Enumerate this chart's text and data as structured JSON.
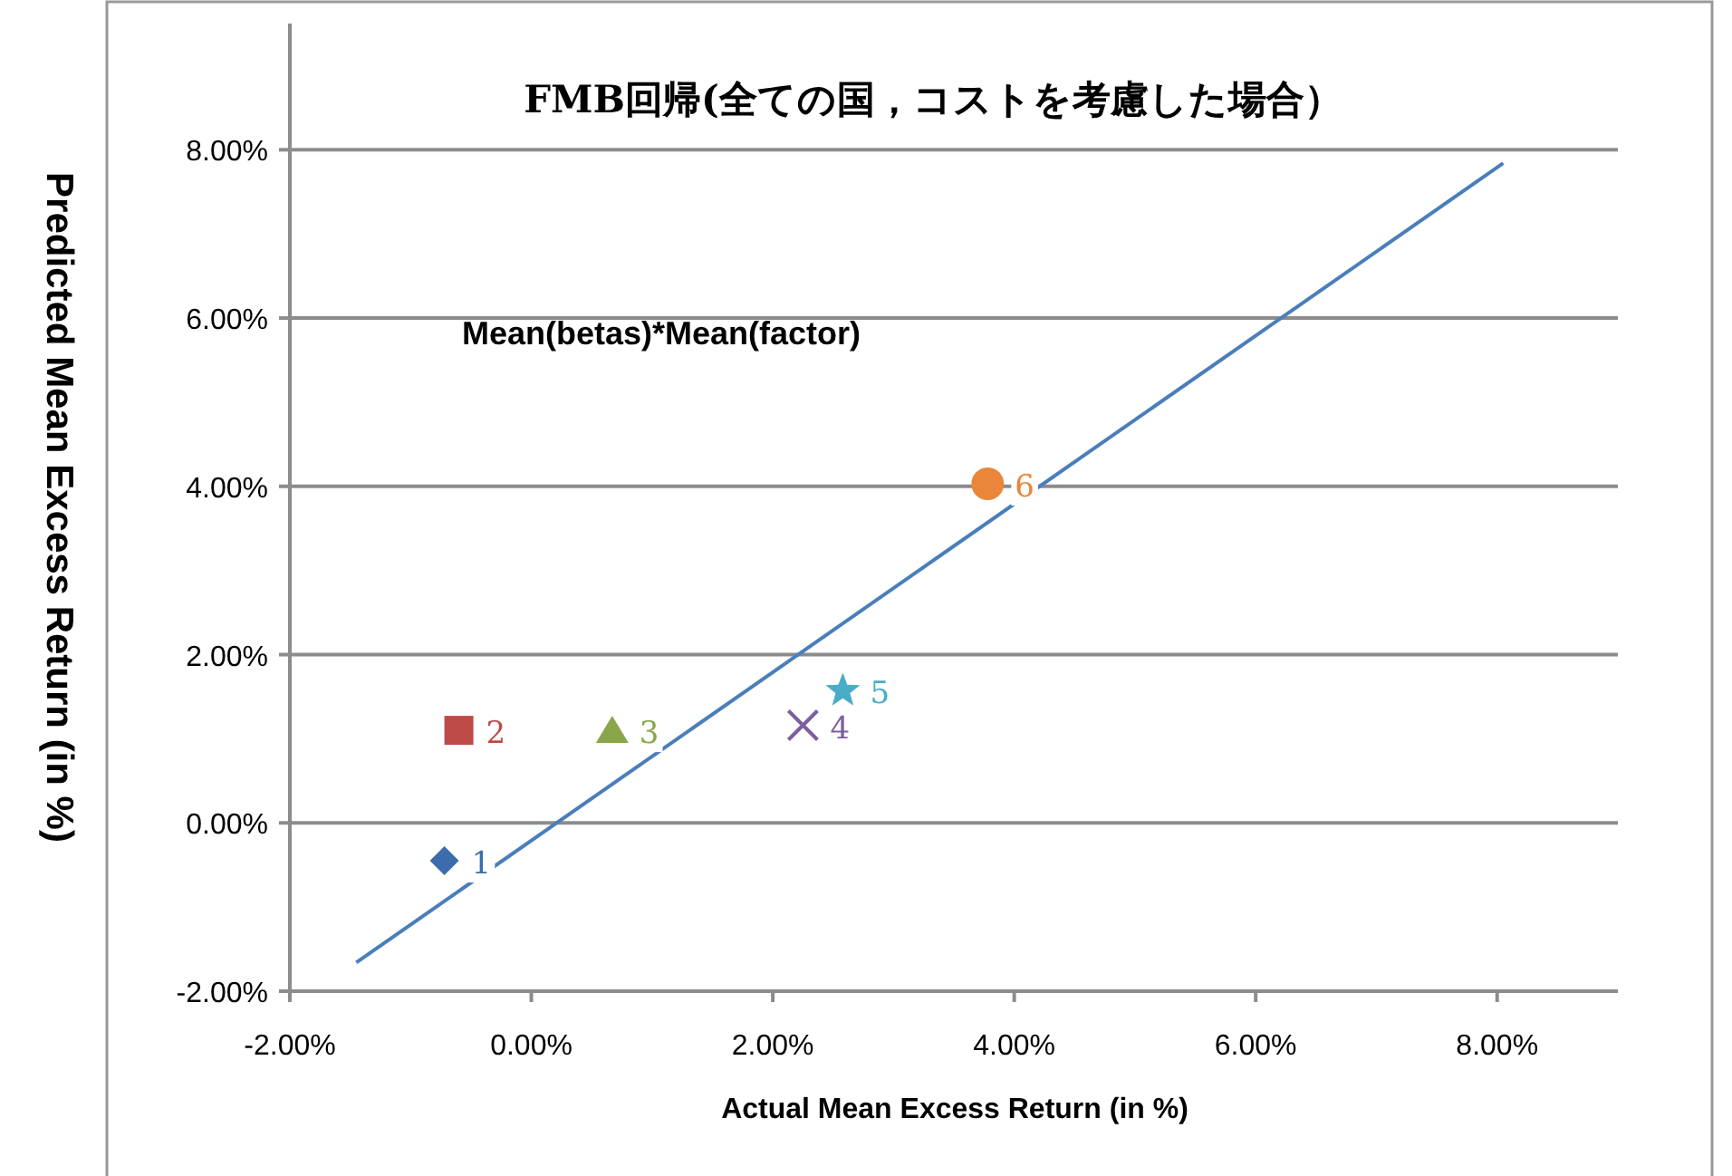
{
  "chart_data": {
    "type": "scatter",
    "title": "FMB回帰(全ての国，コストを考慮した場合）",
    "xlabel": "Actual Mean Excess Return (in %)",
    "ylabel": "Predicted Mean Excess Return (in %)",
    "annotations": [
      "Mean(betas)*Mean(factor)"
    ],
    "xlim": [
      -2,
      9
    ],
    "ylim": [
      -2,
      9.5
    ],
    "xticks": [
      {
        "value": -2,
        "label": "-2.00%"
      },
      {
        "value": 0,
        "label": "0.00%"
      },
      {
        "value": 2,
        "label": "2.00%"
      },
      {
        "value": 4,
        "label": "4.00%"
      },
      {
        "value": 6,
        "label": "6.00%"
      },
      {
        "value": 8,
        "label": "8.00%"
      }
    ],
    "yticks": [
      {
        "value": -2,
        "label": "-2.00%"
      },
      {
        "value": 0,
        "label": "0.00%"
      },
      {
        "value": 2,
        "label": "2.00%"
      },
      {
        "value": 4,
        "label": "4.00%"
      },
      {
        "value": 6,
        "label": "6.00%"
      },
      {
        "value": 8,
        "label": "8.00%"
      }
    ],
    "grid": "y",
    "series": [
      {
        "name": "1",
        "color": "#3d6cac",
        "marker": "diamond",
        "x": [
          -0.72
        ],
        "values": [
          -0.45
        ]
      },
      {
        "name": "2",
        "color": "#be4b48",
        "marker": "square",
        "x": [
          -0.6
        ],
        "values": [
          1.1
        ]
      },
      {
        "name": "3",
        "color": "#8aa64a",
        "marker": "triangle",
        "x": [
          0.67
        ],
        "values": [
          1.1
        ]
      },
      {
        "name": "4",
        "color": "#7d5f9e",
        "marker": "cross",
        "x": [
          2.25
        ],
        "values": [
          1.16
        ]
      },
      {
        "name": "5",
        "color": "#4aacc6",
        "marker": "star",
        "x": [
          2.58
        ],
        "values": [
          1.57
        ]
      },
      {
        "name": "6",
        "color": "#e9863a",
        "marker": "circle",
        "x": [
          3.78
        ],
        "values": [
          4.03
        ]
      },
      {
        "type": "line",
        "color": "#4a7ebb",
        "marker": "none",
        "x": [
          -1.45,
          8.05
        ],
        "values": [
          -1.66,
          7.84
        ]
      }
    ]
  }
}
